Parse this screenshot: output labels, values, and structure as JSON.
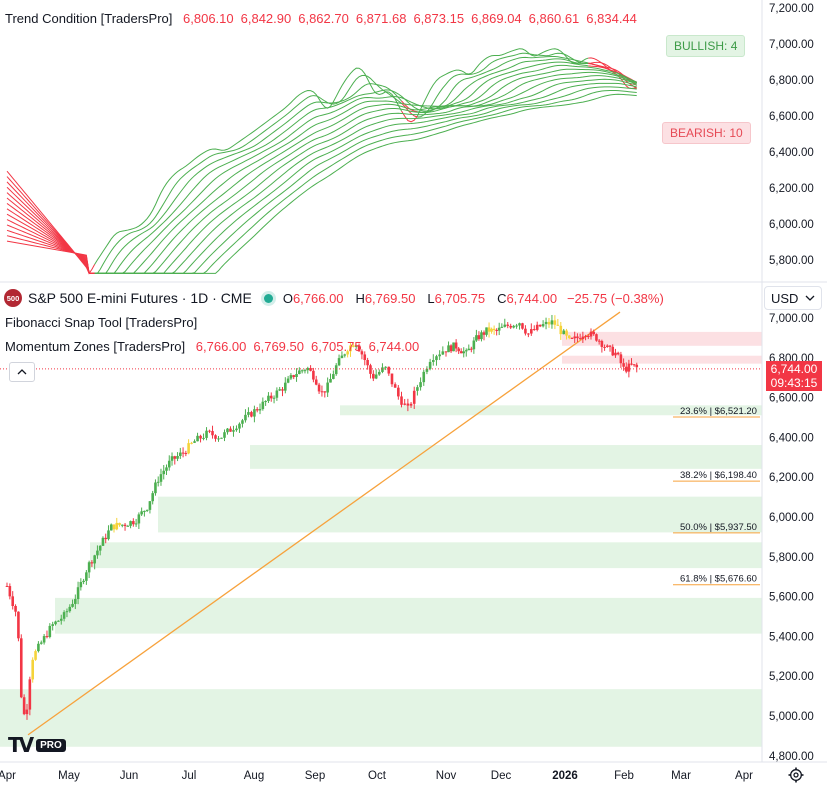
{
  "top_pane": {
    "indicator_title": "Trend Condition [TradersPro]",
    "values": [
      "6,806.10",
      "6,842.90",
      "6,862.70",
      "6,871.68",
      "6,873.15",
      "6,869.04",
      "6,860.61",
      "6,834.44"
    ],
    "bullish_label": "BULLISH: 4",
    "bearish_label": "BEARISH: 10",
    "y_ticks": [
      "7,200.00",
      "7,000.00",
      "6,800.00",
      "6,600.00",
      "6,400.00",
      "6,200.00",
      "6,000.00",
      "5,800.00"
    ]
  },
  "symbol": {
    "logo_text": "500",
    "name": "S&P 500 E-mini Futures · 1D · CME",
    "open_label": "O",
    "open": "6,766.00",
    "high_label": "H",
    "high": "6,769.50",
    "low_label": "L",
    "low": "6,705.75",
    "close_label": "C",
    "close": "6,744.00",
    "change": "−25.75 (−0.38%)"
  },
  "currency_button": "USD",
  "indicators": {
    "fib_title": "Fibonacci Snap Tool [TradersPro]",
    "momentum_title": "Momentum Zones [TradersPro]",
    "momentum_values": [
      "6,766.00",
      "6,769.50",
      "6,705.75",
      "6,744.00"
    ]
  },
  "price_tag": {
    "price": "6,744.00",
    "countdown": "09:43:15"
  },
  "fib_labels": [
    "23.6% | $6,521.20",
    "38.2% | $6,198.40",
    "50.0% | $5,937.50",
    "61.8% | $5,676.60"
  ],
  "main_y_ticks": [
    "7,000.00",
    "6,800.00",
    "6,600.00",
    "6,400.00",
    "6,200.00",
    "6,000.00",
    "5,800.00",
    "5,600.00",
    "5,400.00",
    "5,200.00",
    "5,000.00",
    "4,800.00"
  ],
  "x_ticks": [
    "Apr",
    "May",
    "Jun",
    "Jul",
    "Aug",
    "Sep",
    "Oct",
    "Nov",
    "Dec",
    "2026",
    "Feb",
    "Mar",
    "Apr"
  ],
  "logo": {
    "mark": "TV",
    "badge": "PRO"
  },
  "colors": {
    "bull": "#4caf50",
    "bear": "#f23645",
    "neutral": "#f5d33a",
    "zone_green": "#e3f4e4",
    "zone_red": "#fce0e3",
    "trendline": "#f7a23c"
  },
  "chart_data": {
    "type": "line",
    "title": "S&P 500 E-mini Futures · 1D · CME",
    "x": [
      "Apr",
      "May",
      "Jun",
      "Jul",
      "Aug",
      "Sep",
      "Oct",
      "Nov",
      "Dec",
      "2026",
      "Feb",
      "Mar"
    ],
    "series": [
      {
        "values": [
          5000,
          5600,
          5960,
          6220,
          6360,
          6520,
          6700,
          6800,
          6800,
          6930,
          6980,
          6880
        ]
      }
    ],
    "ylim": [
      4800,
      7100
    ],
    "grid": false
  }
}
